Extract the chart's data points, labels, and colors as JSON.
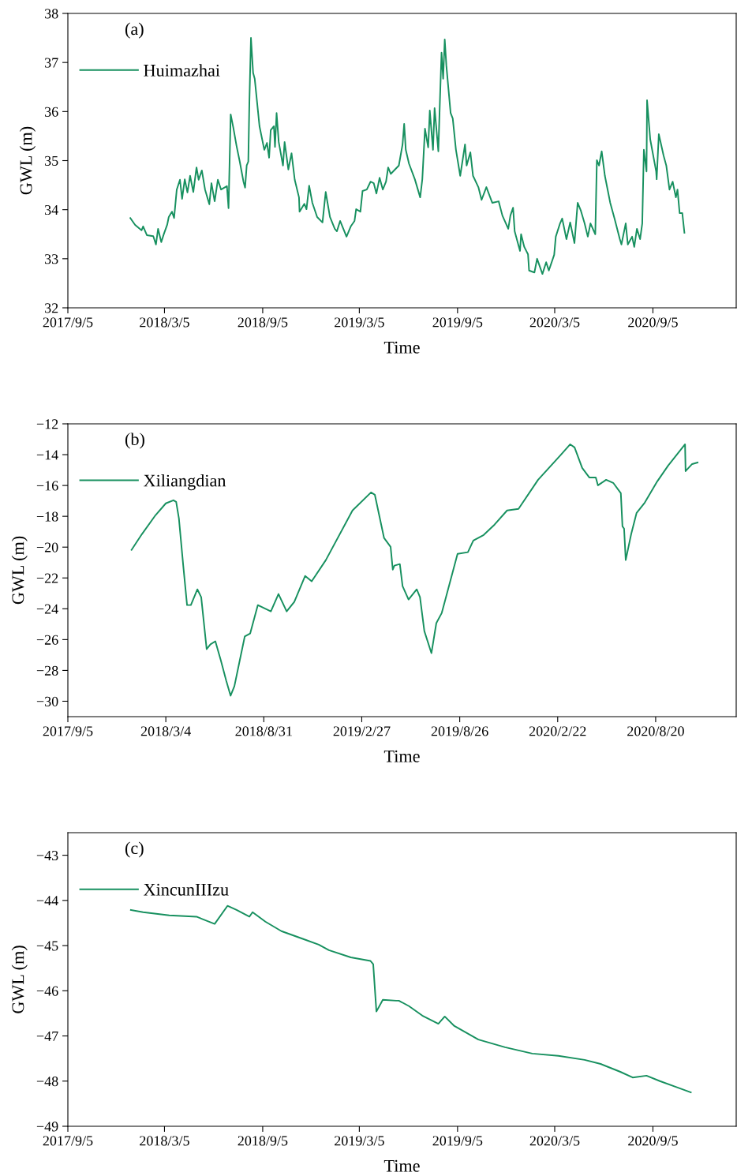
{
  "chart_data": [
    {
      "type": "line",
      "annotations": [
        "(a)"
      ],
      "xlabel": "Time",
      "ylabel": "GWL (m)",
      "legend": "top left",
      "grid": false,
      "marker": "none",
      "line_style": "solid",
      "xlim": [
        "2017-09-05",
        "2021-02-08"
      ],
      "ylim": [
        32,
        38
      ],
      "yticks": [
        32,
        33,
        34,
        35,
        36,
        37,
        38
      ],
      "xticks": [
        {
          "value": "2017-09-05",
          "label": "2017/9/5"
        },
        {
          "value": "2018-03-05",
          "label": "2018/3/5"
        },
        {
          "value": "2018-09-05",
          "label": "2018/9/5"
        },
        {
          "value": "2019-03-05",
          "label": "2019/3/5"
        },
        {
          "value": "2019-09-05",
          "label": "2019/9/5"
        },
        {
          "value": "2020-03-05",
          "label": "2020/3/5"
        },
        {
          "value": "2020-09-05",
          "label": "2020/9/5"
        }
      ],
      "series": [
        {
          "name": "Huimazhai",
          "color": "#17905f",
          "x": [
            "2017-12-31",
            "2018-01-09",
            "2018-01-21",
            "2018-01-24",
            "2018-01-31",
            "2018-02-12",
            "2018-02-17",
            "2018-02-21",
            "2018-02-27",
            "2018-03-04",
            "2018-03-10",
            "2018-03-13",
            "2018-03-19",
            "2018-03-23",
            "2018-03-28",
            "2018-04-03",
            "2018-04-07",
            "2018-04-12",
            "2018-04-17",
            "2018-04-22",
            "2018-04-28",
            "2018-05-04",
            "2018-05-08",
            "2018-05-14",
            "2018-05-20",
            "2018-05-28",
            "2018-06-01",
            "2018-06-07",
            "2018-06-13",
            "2018-06-19",
            "2018-06-30",
            "2018-07-03",
            "2018-07-07",
            "2018-07-12",
            "2018-07-18",
            "2018-07-24",
            "2018-07-31",
            "2018-08-03",
            "2018-08-06",
            "2018-08-09",
            "2018-08-11",
            "2018-08-14",
            "2018-08-18",
            "2018-08-21",
            "2018-08-30",
            "2018-09-08",
            "2018-09-13",
            "2018-09-17",
            "2018-09-20",
            "2018-09-26",
            "2018-09-28",
            "2018-10-01",
            "2018-10-05",
            "2018-10-13",
            "2018-10-16",
            "2018-10-23",
            "2018-10-29",
            "2018-11-04",
            "2018-11-12",
            "2018-11-13",
            "2018-11-22",
            "2018-11-26",
            "2018-12-01",
            "2018-12-07",
            "2018-12-16",
            "2018-12-26",
            "2019-01-01",
            "2019-01-09",
            "2019-01-18",
            "2019-01-22",
            "2019-01-28",
            "2019-02-05",
            "2019-02-09",
            "2019-02-17",
            "2019-02-24",
            "2019-02-27",
            "2019-03-07",
            "2019-03-11",
            "2019-03-19",
            "2019-03-26",
            "2019-04-01",
            "2019-04-06",
            "2019-04-12",
            "2019-04-18",
            "2019-04-24",
            "2019-04-28",
            "2019-05-03",
            "2019-05-18",
            "2019-05-25",
            "2019-05-28",
            "2019-05-31",
            "2019-06-06",
            "2019-06-17",
            "2019-06-27",
            "2019-07-01",
            "2019-07-06",
            "2019-07-12",
            "2019-07-15",
            "2019-07-21",
            "2019-07-24",
            "2019-07-31",
            "2019-08-03",
            "2019-08-06",
            "2019-08-09",
            "2019-08-12",
            "2019-08-15",
            "2019-08-23",
            "2019-08-27",
            "2019-09-02",
            "2019-09-10",
            "2019-09-19",
            "2019-09-22",
            "2019-09-29",
            "2019-10-04",
            "2019-10-14",
            "2019-10-20",
            "2019-10-29",
            "2019-11-09",
            "2019-11-21",
            "2019-11-28",
            "2019-12-09",
            "2019-12-13",
            "2019-12-18",
            "2019-12-21",
            "2019-12-31",
            "2020-01-02",
            "2020-01-08",
            "2020-01-15",
            "2020-01-17",
            "2020-01-27",
            "2020-02-01",
            "2020-02-11",
            "2020-02-18",
            "2020-02-23",
            "2020-03-04",
            "2020-03-07",
            "2020-03-15",
            "2020-03-19",
            "2020-03-27",
            "2020-04-03",
            "2020-04-11",
            "2020-04-17",
            "2020-04-23",
            "2020-04-30",
            "2020-05-06",
            "2020-05-11",
            "2020-05-20",
            "2020-05-23",
            "2020-05-27",
            "2020-06-01",
            "2020-06-07",
            "2020-06-17",
            "2020-06-25",
            "2020-07-05",
            "2020-07-08",
            "2020-07-16",
            "2020-07-20",
            "2020-07-28",
            "2020-08-01",
            "2020-08-06",
            "2020-08-12",
            "2020-08-16",
            "2020-08-19",
            "2020-08-24",
            "2020-08-25",
            "2020-08-31",
            "2020-09-11",
            "2020-09-12",
            "2020-09-16",
            "2020-09-25",
            "2020-09-30",
            "2020-10-06",
            "2020-10-12",
            "2020-10-18",
            "2020-10-21",
            "2020-10-25",
            "2020-10-30",
            "2020-11-03"
          ],
          "values": [
            33.83,
            33.69,
            33.58,
            33.66,
            33.48,
            33.46,
            33.29,
            33.61,
            33.34,
            33.51,
            33.69,
            33.85,
            33.96,
            33.83,
            34.41,
            34.61,
            34.22,
            34.62,
            34.35,
            34.69,
            34.36,
            34.86,
            34.61,
            34.8,
            34.41,
            34.11,
            34.54,
            34.17,
            34.61,
            34.41,
            34.48,
            34.03,
            35.94,
            35.67,
            35.3,
            34.98,
            34.57,
            34.45,
            34.9,
            34.98,
            36.18,
            37.5,
            36.79,
            36.67,
            35.7,
            35.22,
            35.36,
            35.06,
            35.62,
            35.7,
            35.28,
            35.97,
            35.38,
            34.9,
            35.38,
            34.82,
            35.15,
            34.61,
            34.25,
            33.96,
            34.12,
            34.01,
            34.49,
            34.14,
            33.85,
            33.74,
            34.36,
            33.85,
            33.61,
            33.56,
            33.77,
            33.56,
            33.45,
            33.66,
            33.77,
            34.01,
            33.96,
            34.38,
            34.41,
            34.57,
            34.54,
            34.33,
            34.65,
            34.41,
            34.57,
            34.86,
            34.73,
            34.9,
            35.33,
            35.75,
            35.22,
            34.94,
            34.62,
            34.25,
            34.62,
            35.65,
            35.27,
            36.02,
            35.22,
            36.07,
            35.19,
            36.23,
            37.2,
            36.67,
            37.47,
            36.94,
            35.97,
            35.86,
            35.22,
            34.69,
            35.33,
            34.9,
            35.17,
            34.69,
            34.46,
            34.2,
            34.46,
            34.14,
            34.17,
            33.88,
            33.61,
            33.88,
            34.04,
            33.56,
            33.16,
            33.5,
            33.24,
            33.09,
            32.76,
            32.72,
            33.0,
            32.69,
            32.93,
            32.76,
            33.08,
            33.45,
            33.72,
            33.82,
            33.4,
            33.74,
            33.32,
            34.14,
            33.98,
            33.72,
            33.45,
            33.72,
            33.5,
            35.01,
            34.9,
            35.19,
            34.69,
            34.14,
            33.82,
            33.4,
            33.29,
            33.72,
            33.29,
            33.45,
            33.24,
            33.61,
            33.4,
            33.72,
            35.22,
            34.78,
            36.23,
            35.43,
            34.78,
            34.62,
            35.54,
            35.1,
            34.9,
            34.41,
            34.57,
            34.25,
            34.41,
            33.93,
            33.93,
            33.53
          ]
        }
      ]
    },
    {
      "type": "line",
      "annotations": [
        "(b)"
      ],
      "xlabel": "Time",
      "ylabel": "GWL (m)",
      "legend": "top left",
      "grid": false,
      "marker": "none",
      "line_style": "solid",
      "xlim": [
        "2017-09-05",
        "2021-01-15"
      ],
      "ylim": [
        -31,
        -12
      ],
      "yticks": [
        -30,
        -28,
        -26,
        -24,
        -22,
        -20,
        -18,
        -16,
        -14,
        -12
      ],
      "xticks": [
        {
          "value": "2017-09-05",
          "label": "2017/9/5"
        },
        {
          "value": "2018-03-04",
          "label": "2018/3/4"
        },
        {
          "value": "2018-08-31",
          "label": "2018/8/31"
        },
        {
          "value": "2019-02-27",
          "label": "2019/2/27"
        },
        {
          "value": "2019-08-26",
          "label": "2019/8/26"
        },
        {
          "value": "2020-02-22",
          "label": "2020/2/22"
        },
        {
          "value": "2020-08-20",
          "label": "2020/8/20"
        }
      ],
      "series": [
        {
          "name": "Xiliangdian",
          "color": "#17905f",
          "x": [
            "2017-12-31",
            "2018-01-19",
            "2018-02-13",
            "2018-03-04",
            "2018-03-18",
            "2018-03-23",
            "2018-03-28",
            "2018-04-05",
            "2018-04-12",
            "2018-04-19",
            "2018-05-01",
            "2018-05-08",
            "2018-05-18",
            "2018-05-25",
            "2018-06-03",
            "2018-06-13",
            "2018-06-23",
            "2018-07-01",
            "2018-07-08",
            "2018-07-17",
            "2018-07-27",
            "2018-08-06",
            "2018-08-20",
            "2018-08-29",
            "2018-09-13",
            "2018-09-27",
            "2018-10-12",
            "2018-10-26",
            "2018-11-15",
            "2018-11-27",
            "2018-12-23",
            "2019-02-10",
            "2019-03-16",
            "2019-03-23",
            "2019-04-09",
            "2019-04-21",
            "2019-04-25",
            "2019-04-28",
            "2019-05-08",
            "2019-05-13",
            "2019-05-24",
            "2019-06-08",
            "2019-06-14",
            "2019-06-22",
            "2019-07-05",
            "2019-07-14",
            "2019-07-24",
            "2019-08-22",
            "2019-09-10",
            "2019-09-20",
            "2019-10-09",
            "2019-10-29",
            "2019-11-21",
            "2019-12-12",
            "2020-01-17",
            "2020-02-27",
            "2020-03-16",
            "2020-03-24",
            "2020-04-07",
            "2020-04-20",
            "2020-05-02",
            "2020-05-06",
            "2020-05-21",
            "2020-06-03",
            "2020-06-17",
            "2020-06-20",
            "2020-06-23",
            "2020-06-26",
            "2020-07-06",
            "2020-07-16",
            "2020-07-31",
            "2020-08-23",
            "2020-09-12",
            "2020-10-13",
            "2020-10-14",
            "2020-10-26",
            "2020-11-05"
          ],
          "values": [
            -20.18,
            -19.16,
            -17.93,
            -17.16,
            -16.96,
            -17.06,
            -18.13,
            -21.2,
            -23.76,
            -23.76,
            -22.74,
            -23.25,
            -26.62,
            -26.31,
            -26.11,
            -27.34,
            -28.67,
            -29.64,
            -29.02,
            -27.49,
            -25.8,
            -25.6,
            -23.76,
            -23.91,
            -24.17,
            -23.04,
            -24.17,
            -23.55,
            -21.87,
            -22.22,
            -20.84,
            -17.62,
            -16.45,
            -16.6,
            -19.41,
            -19.98,
            -21.46,
            -21.2,
            -21.1,
            -22.53,
            -23.4,
            -22.74,
            -23.25,
            -25.45,
            -26.88,
            -24.93,
            -24.27,
            -20.44,
            -20.33,
            -19.57,
            -19.21,
            -18.54,
            -17.62,
            -17.52,
            -15.63,
            -14.04,
            -13.33,
            -13.53,
            -14.86,
            -15.48,
            -15.48,
            -15.99,
            -15.63,
            -15.83,
            -16.5,
            -18.65,
            -18.8,
            -20.84,
            -19.16,
            -17.78,
            -17.11,
            -15.73,
            -14.71,
            -13.33,
            -15.07,
            -14.61,
            -14.51
          ]
        }
      ]
    },
    {
      "type": "line",
      "annotations": [
        "(c)"
      ],
      "xlabel": "Time",
      "ylabel": "GWL (m)",
      "legend": "top left",
      "grid": false,
      "marker": "none",
      "line_style": "solid",
      "xlim": [
        "2017-09-05",
        "2021-02-08"
      ],
      "ylim": [
        -49,
        -42.5
      ],
      "yticks": [
        -49,
        -48,
        -47,
        -46,
        -45,
        -44,
        -43
      ],
      "xticks": [
        {
          "value": "2017-09-05",
          "label": "2017/9/5"
        },
        {
          "value": "2018-03-05",
          "label": "2018/3/5"
        },
        {
          "value": "2018-09-05",
          "label": "2018/9/5"
        },
        {
          "value": "2019-03-05",
          "label": "2019/3/5"
        },
        {
          "value": "2019-09-05",
          "label": "2019/9/5"
        },
        {
          "value": "2020-03-05",
          "label": "2020/3/5"
        },
        {
          "value": "2020-09-05",
          "label": "2020/9/5"
        }
      ],
      "series": [
        {
          "name": "XincunIIIzu",
          "color": "#17905f",
          "x": [
            "2018-01-01",
            "2018-01-24",
            "2018-03-14",
            "2018-05-04",
            "2018-06-07",
            "2018-07-01",
            "2018-07-18",
            "2018-08-11",
            "2018-08-17",
            "2018-09-10",
            "2018-10-10",
            "2018-11-19",
            "2018-12-19",
            "2019-01-07",
            "2019-02-17",
            "2019-03-26",
            "2019-03-31",
            "2019-04-06",
            "2019-04-18",
            "2019-05-13",
            "2019-05-18",
            "2019-06-06",
            "2019-07-01",
            "2019-07-31",
            "2019-08-12",
            "2019-08-30",
            "2019-10-14",
            "2019-12-03",
            "2020-01-23",
            "2020-03-12",
            "2020-04-30",
            "2020-05-30",
            "2020-07-05",
            "2020-07-29",
            "2020-08-24",
            "2020-09-18",
            "2020-10-18",
            "2020-11-15"
          ],
          "values": [
            -44.21,
            -44.26,
            -44.33,
            -44.36,
            -44.52,
            -44.12,
            -44.21,
            -44.36,
            -44.26,
            -44.47,
            -44.68,
            -44.85,
            -44.98,
            -45.1,
            -45.26,
            -45.34,
            -45.41,
            -46.46,
            -46.2,
            -46.22,
            -46.22,
            -46.34,
            -46.55,
            -46.73,
            -46.57,
            -46.78,
            -47.08,
            -47.25,
            -47.39,
            -47.44,
            -47.53,
            -47.62,
            -47.79,
            -47.92,
            -47.88,
            -48.0,
            -48.13,
            -48.25
          ]
        }
      ]
    }
  ]
}
